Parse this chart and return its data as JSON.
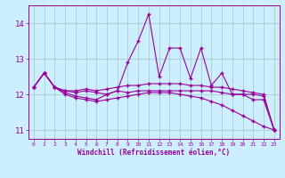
{
  "xlabel": "Windchill (Refroidissement éolien,°C)",
  "x": [
    0,
    1,
    2,
    3,
    4,
    5,
    6,
    7,
    8,
    9,
    10,
    11,
    12,
    13,
    14,
    15,
    16,
    17,
    18,
    19,
    20,
    21,
    22,
    23
  ],
  "line1": [
    12.2,
    12.6,
    12.2,
    12.1,
    12.05,
    12.1,
    12.05,
    12.0,
    12.1,
    12.05,
    12.1,
    12.1,
    12.1,
    12.1,
    12.1,
    12.1,
    12.1,
    12.1,
    12.05,
    12.0,
    12.0,
    12.0,
    11.95,
    11.0
  ],
  "line2": [
    12.2,
    12.6,
    12.2,
    12.05,
    11.95,
    11.9,
    11.85,
    12.0,
    12.1,
    12.9,
    13.5,
    14.25,
    12.5,
    13.3,
    13.3,
    12.45,
    13.3,
    12.25,
    12.6,
    12.0,
    12.0,
    11.85,
    11.85,
    11.0
  ],
  "line3": [
    12.2,
    12.6,
    12.2,
    12.1,
    12.1,
    12.15,
    12.1,
    12.15,
    12.2,
    12.25,
    12.25,
    12.3,
    12.3,
    12.3,
    12.3,
    12.25,
    12.25,
    12.2,
    12.2,
    12.15,
    12.1,
    12.05,
    12.0,
    11.0
  ],
  "line4": [
    12.2,
    12.6,
    12.2,
    12.0,
    11.9,
    11.85,
    11.8,
    11.85,
    11.9,
    11.95,
    12.0,
    12.05,
    12.05,
    12.05,
    12.0,
    11.95,
    11.9,
    11.8,
    11.7,
    11.55,
    11.4,
    11.25,
    11.1,
    11.0
  ],
  "line_color": "#990099",
  "bg_color": "#cceeff",
  "grid_color": "#aacccc",
  "ylim": [
    10.75,
    14.5
  ],
  "yticks": [
    11,
    12,
    13,
    14
  ],
  "xticks": [
    0,
    1,
    2,
    3,
    4,
    5,
    6,
    7,
    8,
    9,
    10,
    11,
    12,
    13,
    14,
    15,
    16,
    17,
    18,
    19,
    20,
    21,
    22,
    23
  ]
}
